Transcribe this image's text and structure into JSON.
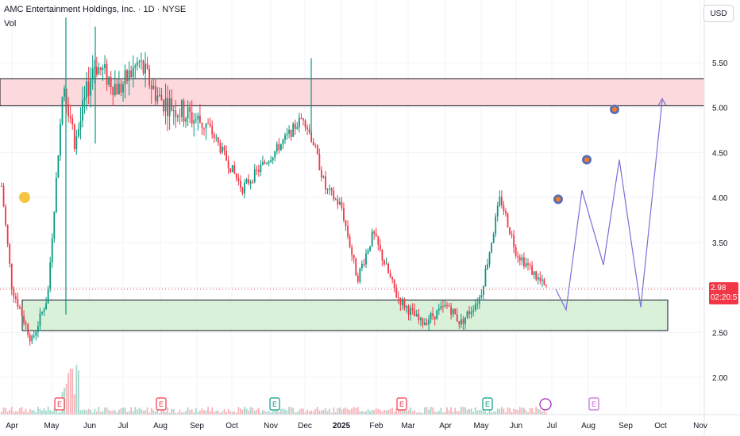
{
  "header": {
    "symbol_line": "AMC Entertainment Holdings, Inc. · 1D · NYSE",
    "indicator": "Vol",
    "currency": "USD"
  },
  "price_tag": {
    "price": "2.98",
    "countdown": "02:20:57",
    "color": "#f23645"
  },
  "colors": {
    "up": "#089981",
    "down": "#f23645",
    "resistance_fill": "#fcd9dc",
    "support_fill": "#d9f0d9",
    "projection": "#7b6fd6"
  },
  "chart_data": {
    "type": "candlestick",
    "title": "",
    "ylim": [
      1.6,
      6.0
    ],
    "y_ticks": [
      "5.50",
      "5.00",
      "4.50",
      "4.00",
      "3.50",
      "3.00",
      "2.50",
      "2.00"
    ],
    "x_ticks": [
      "Apr",
      "May",
      "Jun",
      "Jul",
      "Aug",
      "Sep",
      "Oct",
      "Nov",
      "Dec",
      "2025",
      "Feb",
      "Mar",
      "Apr",
      "May",
      "Jun",
      "Jul",
      "Aug",
      "Sep",
      "Oct",
      "Nov"
    ],
    "resistance_zone": [
      5.02,
      5.32
    ],
    "support_zone": [
      2.52,
      2.86
    ],
    "last_price": 2.98,
    "price_path": [
      {
        "x": "Apr",
        "close": 4.3
      },
      {
        "x": "Apr",
        "close": 3.0
      },
      {
        "x": "Apr",
        "close": 2.4
      },
      {
        "x": "May",
        "close": 2.9
      },
      {
        "x": "May",
        "close": 5.3
      },
      {
        "x": "Jun",
        "close": 4.6
      },
      {
        "x": "Jun",
        "close": 5.5
      },
      {
        "x": "Jul",
        "close": 5.2
      },
      {
        "x": "Jul",
        "close": 5.5
      },
      {
        "x": "Aug",
        "close": 5.1
      },
      {
        "x": "Sep",
        "close": 4.9
      },
      {
        "x": "Sep",
        "close": 4.8
      },
      {
        "x": "Oct",
        "close": 4.1
      },
      {
        "x": "Nov",
        "close": 4.5
      },
      {
        "x": "Dec",
        "close": 4.9
      },
      {
        "x": "Dec",
        "close": 4.6
      },
      {
        "x": "2025",
        "close": 4.1
      },
      {
        "x": "2025",
        "close": 3.9
      },
      {
        "x": "Feb",
        "close": 3.1
      },
      {
        "x": "Feb",
        "close": 3.6
      },
      {
        "x": "Mar",
        "close": 2.9
      },
      {
        "x": "Apr",
        "close": 2.6
      },
      {
        "x": "Apr",
        "close": 2.8
      },
      {
        "x": "May",
        "close": 2.6
      },
      {
        "x": "May",
        "close": 2.9
      },
      {
        "x": "Jun",
        "close": 4.0
      },
      {
        "x": "Jun",
        "close": 3.4
      },
      {
        "x": "Jul",
        "close": 2.98
      }
    ],
    "projection_path": [
      2.98,
      2.75,
      4.08,
      3.25,
      4.42,
      2.78,
      5.08
    ],
    "earnings_markers": [
      "May",
      "Aug",
      "Nov",
      "Feb",
      "May",
      "Aug"
    ],
    "dividend_marker": "Jul",
    "target_markers": [
      3.98,
      4.42,
      4.98
    ]
  }
}
